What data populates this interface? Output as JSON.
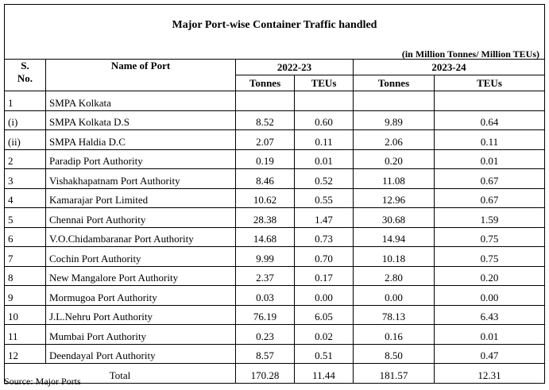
{
  "title": "Major Port-wise Container Traffic handled",
  "unit_note": "(in Million Tonnes/ Million TEUs)",
  "header": {
    "sno": [
      "S.",
      "No."
    ],
    "name": "Name of Port",
    "years": [
      "2022-23",
      "2023-24"
    ],
    "sub": [
      "Tonnes",
      "TEUs",
      "Tonnes",
      "TEUs"
    ]
  },
  "rows": [
    [
      "1",
      "SMPA Kolkata"
    ],
    [
      "(i)",
      "SMPA Kolkata D.S",
      "8.52",
      "0.60",
      "9.89",
      "0.64"
    ],
    [
      "(ii)",
      "SMPA Haldia D.C",
      "2.07",
      "0.11",
      "2.06",
      "0.11"
    ],
    [
      "2",
      "Paradip Port Authority",
      "0.19",
      "0.01",
      "0.20",
      "0.01"
    ],
    [
      "3",
      "Vishakhapatnam Port Authority",
      "8.46",
      "0.52",
      "11.08",
      "0.67"
    ],
    [
      "4",
      "Kamarajar Port Limited",
      "10.62",
      "0.55",
      "12.96",
      "0.67"
    ],
    [
      "5",
      "Chennai Port Authority",
      "28.38",
      "1.47",
      "30.68",
      "1.59"
    ],
    [
      "6",
      "V.O.Chidambaranar Port Authority",
      "14.68",
      "0.73",
      "14.94",
      "0.75"
    ],
    [
      "7",
      "Cochin Port Authority",
      "9.99",
      "0.70",
      "10.18",
      "0.75"
    ],
    [
      "8",
      "New Mangalore Port Authority",
      "2.37",
      "0.17",
      "2.80",
      "0.20"
    ],
    [
      "9",
      "Mormugoa Port Authority",
      "0.03",
      "0.00",
      "0.00",
      "0.00"
    ],
    [
      "10",
      "J.L.Nehru Port Authority",
      "76.19",
      "6.05",
      "78.13",
      "6.43"
    ],
    [
      "11",
      "Mumbai Port Authority",
      "0.23",
      "0.02",
      "0.16",
      "0.01"
    ],
    [
      "12",
      "Deendayal Port Authority",
      "8.57",
      "0.51",
      "8.50",
      "0.47"
    ]
  ],
  "total": {
    "label": "Total",
    "values": [
      "170.28",
      "11.44",
      "181.57",
      "12.31"
    ]
  },
  "source": "Source: Major Ports"
}
